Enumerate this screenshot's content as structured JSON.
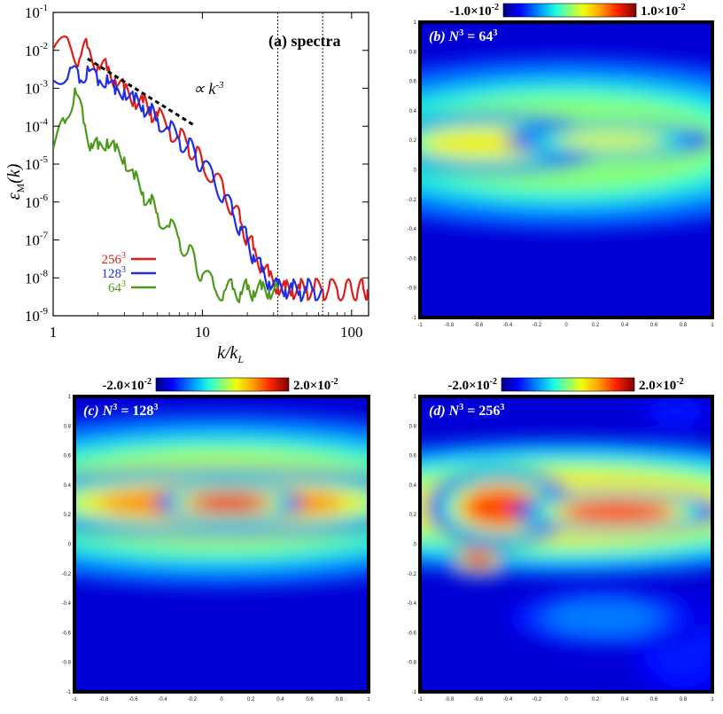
{
  "chart_data": [
    {
      "id": "a",
      "type": "line",
      "title": "(a) spectra",
      "xlabel": "k/k",
      "xlabel_sub": "L",
      "ylabel": "ε",
      "ylabel_sub": "M",
      "ylabel_tail": "(k)",
      "xscale": "log",
      "yscale": "log",
      "xlim": [
        1,
        130
      ],
      "ylim": [
        1e-09,
        0.1
      ],
      "x_ticks": [
        1,
        10,
        100
      ],
      "x_tick_labels": [
        "1",
        "10",
        "100"
      ],
      "y_ticks": [
        -9,
        -8,
        -7,
        -6,
        -5,
        -4,
        -3,
        -2,
        -1
      ],
      "y_tick_labels": [
        [
          "10",
          "-9"
        ],
        [
          "10",
          "-8"
        ],
        [
          "10",
          "-7"
        ],
        [
          "10",
          "-6"
        ],
        [
          "10",
          "-5"
        ],
        [
          "10",
          "-4"
        ],
        [
          "10",
          "-3"
        ],
        [
          "10",
          "-2"
        ],
        [
          "10",
          "-1"
        ]
      ],
      "annotation": {
        "text": "∝ k",
        "exp": "-3",
        "line_from": [
          1.7,
          0.006
        ],
        "line_to": [
          9.0,
          0.0001
        ]
      },
      "cutoffs": [
        32,
        64
      ],
      "series": [
        {
          "name": "256",
          "sup": "3",
          "color": "#dd1c1c",
          "x": [
            1,
            1.3,
            1.5,
            1.7,
            2,
            2.3,
            2.6,
            3,
            3.5,
            4,
            4.5,
            5,
            6,
            7,
            8,
            9,
            10,
            12,
            14,
            16,
            18,
            20,
            22,
            25,
            28,
            32,
            36,
            40,
            45,
            50,
            56,
            64,
            70,
            80,
            90,
            100,
            110,
            120,
            128
          ],
          "y": [
            0.011,
            0.013,
            0.006,
            0.012,
            0.004,
            0.003,
            0.0018,
            0.0009,
            0.0005,
            0.00042,
            0.00025,
            0.00018,
            8.5e-05,
            5e-05,
            3.2e-05,
            1.8e-05,
            1.1e-05,
            4.5e-06,
            1.8e-06,
            7e-07,
            3e-07,
            1.2e-07,
            5.5e-08,
            2.2e-08,
            1.1e-08,
            6e-09,
            5e-09,
            5e-09,
            5e-09,
            5e-09,
            5e-09,
            5e-09,
            4.8e-09,
            5e-09,
            4.6e-09,
            5e-09,
            4.7e-09,
            5e-09,
            5e-09
          ]
        },
        {
          "name": "128",
          "sup": "3",
          "color": "#1f2ee0",
          "x": [
            1,
            1.3,
            1.5,
            1.7,
            2,
            2.3,
            2.6,
            3,
            3.5,
            4,
            4.5,
            5,
            6,
            7,
            8,
            9,
            10,
            12,
            14,
            16,
            18,
            20,
            22,
            25,
            28,
            32,
            36,
            40,
            45,
            50,
            56,
            64
          ],
          "y": [
            0.0016,
            0.0035,
            0.0014,
            0.0038,
            0.0012,
            0.0022,
            0.0007,
            0.0009,
            0.00045,
            0.00035,
            0.00022,
            0.00016,
            8e-05,
            4.5e-05,
            3e-05,
            1.7e-05,
            9e-06,
            3.8e-06,
            1.4e-06,
            5e-07,
            2.2e-07,
            9e-08,
            4e-08,
            1.5e-08,
            8e-09,
            5.5e-09,
            5e-09,
            5e-09,
            4.5e-09,
            5e-09,
            4.8e-09,
            5e-09
          ]
        },
        {
          "name": "64",
          "sup": "3",
          "color": "#4e9a1e",
          "x": [
            1,
            1.2,
            1.4,
            1.6,
            1.8,
            2,
            2.3,
            2.6,
            3,
            3.5,
            4,
            4.5,
            5,
            6,
            7,
            8,
            9,
            10,
            12,
            14,
            16,
            18,
            20,
            22,
            25,
            28,
            32
          ],
          "y": [
            2.5e-05,
            0.00012,
            0.001,
            0.00012,
            3.5e-05,
            2.5e-05,
            4.5e-05,
            2.2e-05,
            1.5e-05,
            4e-06,
            1.8e-06,
            9e-07,
            5e-07,
            2.2e-07,
            1e-07,
            5e-08,
            2.5e-08,
            1.2e-08,
            5.5e-09,
            4.5e-09,
            5e-09,
            4.2e-09,
            5e-09,
            4.5e-09,
            5e-09,
            4.6e-09,
            5e-09
          ]
        }
      ]
    },
    {
      "id": "b",
      "type": "heatmap",
      "label": "(b) N",
      "label_sup": "3",
      "label_eq": " = 64",
      "label_eq_sup": "3",
      "colorbar": {
        "min_text": "-1.0×10",
        "min_exp": "-2",
        "max_text": "1.0×10",
        "max_exp": "-2",
        "vmin": -0.01,
        "vmax": 0.01
      },
      "xlim": [
        -1,
        1
      ],
      "ylim": [
        -1,
        1
      ],
      "x_tick_labels": [
        "-1",
        "-0.8",
        "-0.6",
        "-0.4",
        "-0.2",
        "0",
        "0.2",
        "0.4",
        "0.6",
        "0.8",
        "1"
      ],
      "y_tick_labels": [
        "-1",
        "-0.8",
        "-0.6",
        "-0.4",
        "-0.2",
        "0",
        "0.2",
        "0.4",
        "0.6",
        "0.8",
        "1"
      ],
      "features": [
        {
          "x": 0,
          "y": 0.18,
          "rx": 1.6,
          "ry": 0.45,
          "level": 0.5
        },
        {
          "x": -0.55,
          "y": 0.18,
          "rx": 0.6,
          "ry": 0.14,
          "level": 0.62
        },
        {
          "x": 0.3,
          "y": 0.2,
          "rx": 0.5,
          "ry": 0.08,
          "level": 0.58
        }
      ]
    },
    {
      "id": "c",
      "type": "heatmap",
      "label": "(c) N",
      "label_sup": "3",
      "label_eq": " = 128",
      "label_eq_sup": "3",
      "colorbar": {
        "min_text": "-2.0×10",
        "min_exp": "-2",
        "max_text": "2.0×10",
        "max_exp": "-2",
        "vmin": -0.02,
        "vmax": 0.02
      },
      "xlim": [
        -1,
        1
      ],
      "ylim": [
        -1,
        1
      ],
      "x_tick_labels": [
        "-1",
        "-0.8",
        "-0.6",
        "-0.4",
        "-0.2",
        "0",
        "0.2",
        "0.4",
        "0.6",
        "0.8",
        "1"
      ],
      "y_tick_labels": [
        "-1",
        "-0.8",
        "-0.6",
        "-0.4",
        "-0.2",
        "0",
        "0.2",
        "0.4",
        "0.6",
        "0.8",
        "1"
      ],
      "features": [
        {
          "x": 0,
          "y": 0.3,
          "rx": 1.8,
          "ry": 0.45,
          "level": 0.55
        },
        {
          "x": 0,
          "y": 0.28,
          "rx": 1.2,
          "ry": 0.16,
          "level": 0.75
        },
        {
          "x": 0.05,
          "y": 0.28,
          "rx": 0.35,
          "ry": 0.09,
          "level": 0.88
        }
      ]
    },
    {
      "id": "d",
      "type": "heatmap",
      "label": "(d) N",
      "label_sup": "3",
      "label_eq": " = 256",
      "label_eq_sup": "3",
      "colorbar": {
        "min_text": "-2.0×10",
        "min_exp": "-2",
        "max_text": "2.0×10",
        "max_exp": "-2",
        "vmin": -0.02,
        "vmax": 0.02
      },
      "xlim": [
        -1,
        1
      ],
      "ylim": [
        -1,
        1
      ],
      "x_tick_labels": [
        "-1",
        "-0.8",
        "-0.6",
        "-0.4",
        "-0.2",
        "0",
        "0.2",
        "0.4",
        "0.6",
        "0.8",
        "1"
      ],
      "y_tick_labels": [
        "-1",
        "-0.8",
        "-0.6",
        "-0.4",
        "-0.2",
        "0",
        "0.2",
        "0.4",
        "0.6",
        "0.8",
        "1"
      ],
      "features": [
        {
          "x": 0,
          "y": 0.25,
          "rx": 1.7,
          "ry": 0.35,
          "level": 0.62
        },
        {
          "x": -0.45,
          "y": 0.25,
          "rx": 0.35,
          "ry": 0.18,
          "level": 0.82
        },
        {
          "x": 0.35,
          "y": 0.22,
          "rx": 0.5,
          "ry": 0.1,
          "level": 0.86
        },
        {
          "x": -0.6,
          "y": -0.1,
          "rx": 0.14,
          "ry": 0.08,
          "level": 0.9
        },
        {
          "x": 0.8,
          "y": -0.7,
          "rx": 0.3,
          "ry": 0.3,
          "level": 0.14
        },
        {
          "x": 0.75,
          "y": 0.9,
          "rx": 0.2,
          "ry": 0.1,
          "level": 0.14
        },
        {
          "x": 0.25,
          "y": -0.5,
          "rx": 0.5,
          "ry": 0.15,
          "level": 0.25
        }
      ]
    }
  ]
}
